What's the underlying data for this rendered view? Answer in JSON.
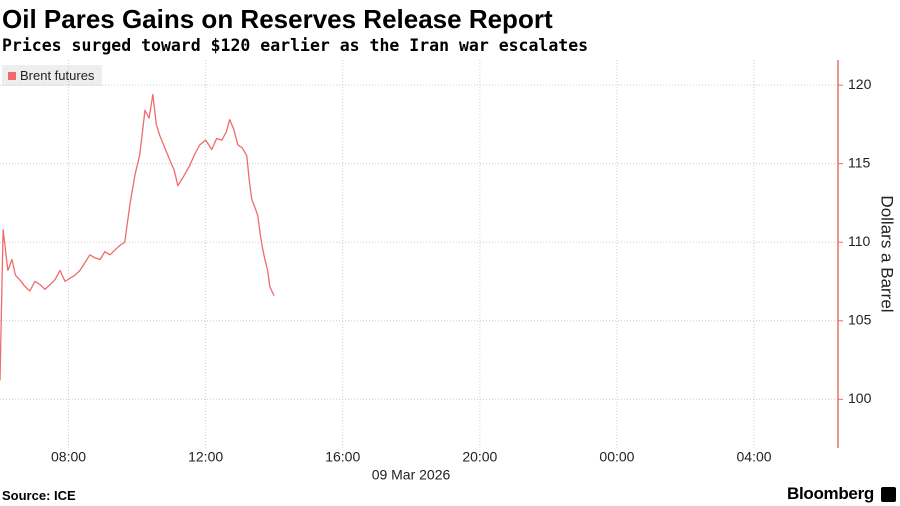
{
  "chart_data": {
    "type": "line",
    "title": "Oil Pares Gains on Reserves Release Report",
    "subtitle": "Prices surged toward $120 earlier as the Iran war escalates",
    "y_axis_label": "Dollars a Barrel",
    "x_axis_label": "09 Mar 2026",
    "source": "Source: ICE",
    "brand": "Bloomberg",
    "x": [
      6.0,
      6.09,
      6.23,
      6.35,
      6.45,
      6.58,
      6.72,
      6.87,
      7.02,
      7.17,
      7.31,
      7.46,
      7.6,
      7.75,
      7.9,
      8.04,
      8.19,
      8.33,
      8.48,
      8.62,
      8.77,
      8.92,
      9.06,
      9.21,
      9.35,
      9.5,
      9.64,
      9.79,
      9.94,
      10.08,
      10.23,
      10.35,
      10.46,
      10.56,
      10.66,
      10.81,
      10.96,
      11.08,
      11.19,
      11.36,
      11.54,
      11.68,
      11.83,
      12.0,
      12.18,
      12.32,
      12.47,
      12.6,
      12.7,
      12.82,
      12.94,
      13.07,
      13.2,
      13.28,
      13.35,
      13.44,
      13.52,
      13.6,
      13.67,
      13.74,
      13.81,
      13.87,
      13.93,
      14.0
    ],
    "series": [
      {
        "name": "Brent futures",
        "color": "#ef6b6b",
        "values": [
          101.2,
          110.8,
          108.2,
          108.9,
          107.9,
          107.6,
          107.2,
          106.9,
          107.5,
          107.3,
          107.0,
          107.3,
          107.6,
          108.2,
          107.5,
          107.7,
          107.9,
          108.2,
          108.7,
          109.2,
          109.0,
          108.9,
          109.4,
          109.2,
          109.5,
          109.8,
          110.0,
          112.4,
          114.3,
          115.6,
          118.4,
          117.9,
          119.4,
          117.5,
          116.8,
          116.0,
          115.2,
          114.6,
          113.6,
          114.2,
          114.9,
          115.6,
          116.2,
          116.5,
          115.9,
          116.6,
          116.5,
          117.0,
          117.8,
          117.2,
          116.2,
          116.0,
          115.5,
          113.8,
          112.7,
          112.2,
          111.7,
          110.4,
          109.5,
          108.8,
          108.2,
          107.2,
          106.9,
          106.6
        ]
      }
    ],
    "xlim": [
      6.0,
      30.45
    ],
    "xticks": [
      {
        "value": 8,
        "label": "08:00"
      },
      {
        "value": 12,
        "label": "12:00"
      },
      {
        "value": 16,
        "label": "16:00"
      },
      {
        "value": 20,
        "label": "20:00"
      },
      {
        "value": 24,
        "label": "00:00"
      },
      {
        "value": 28,
        "label": "04:00"
      }
    ],
    "ylim": [
      96.9,
      121.6
    ],
    "yticks": [
      100,
      105,
      110,
      115,
      120
    ],
    "grid": true,
    "axis_color": "#e8726f"
  }
}
